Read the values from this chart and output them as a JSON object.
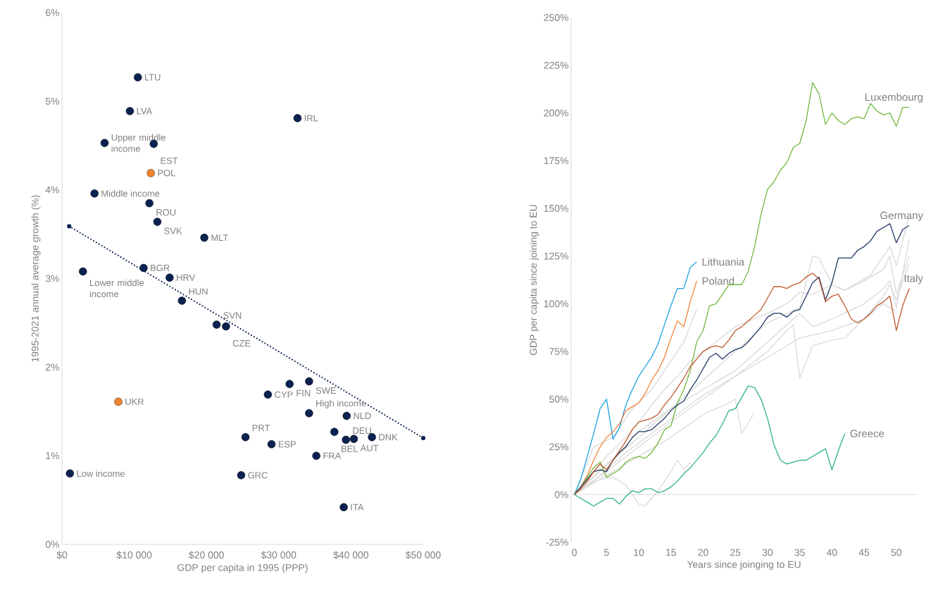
{
  "chart_data": [
    {
      "type": "scatter",
      "xlabel": "GDP per capita in 1995 (PPP)",
      "ylabel": "1995-2021 annual average growth (%)",
      "xlim": [
        0,
        50000
      ],
      "ylim": [
        0,
        6
      ],
      "xticks": [
        {
          "value": 0,
          "label": "$0"
        },
        {
          "value": 10000,
          "label": "$10 000"
        },
        {
          "value": 20000,
          "label": "$20 000"
        },
        {
          "value": 30000,
          "label": "$30 000"
        },
        {
          "value": 40000,
          "label": "$40 000"
        },
        {
          "value": 50000,
          "label": "$50 000"
        }
      ],
      "yticks": [
        {
          "value": 0,
          "label": "0%"
        },
        {
          "value": 1,
          "label": "1%"
        },
        {
          "value": 2,
          "label": "2%"
        },
        {
          "value": 3,
          "label": "3%"
        },
        {
          "value": 4,
          "label": "4%"
        },
        {
          "value": 5,
          "label": "5%"
        },
        {
          "value": 6,
          "label": "6%"
        }
      ],
      "marker": "circle",
      "series": [
        {
          "color": "#0b2150",
          "x": [
            10500,
            9400,
            32600,
            5900,
            12700,
            4500,
            12100,
            13200,
            19700,
            2900,
            11300,
            14900,
            16600,
            21400,
            22700,
            34200,
            31500,
            28500,
            34200,
            39400,
            37700,
            25400,
            42900,
            40400,
            39300,
            29000,
            35200,
            1100,
            24800,
            39000
          ],
          "values": [
            5.27,
            4.89,
            4.81,
            4.53,
            4.52,
            3.96,
            3.85,
            3.64,
            3.46,
            3.08,
            3.12,
            3.01,
            2.75,
            2.48,
            2.46,
            1.84,
            1.81,
            1.69,
            1.48,
            1.45,
            1.27,
            1.21,
            1.21,
            1.19,
            1.18,
            1.13,
            1.0,
            0.8,
            0.78,
            0.42
          ]
        },
        {
          "color": "#f0832e",
          "x": [
            12300,
            7800
          ],
          "values": [
            4.19,
            1.61
          ]
        },
        {
          "type": "line",
          "color": "#0b2150",
          "line_style": "dotted",
          "x": [
            1000,
            50000
          ],
          "values": [
            3.59,
            1.2
          ]
        }
      ],
      "annotations": [
        {
          "text": "LTU",
          "x": 10500,
          "y": 5.27
        },
        {
          "text": "LVA",
          "x": 9400,
          "y": 4.89
        },
        {
          "text": "IRL",
          "x": 32600,
          "y": 4.81
        },
        {
          "text": "Upper middle income",
          "x": 5900,
          "y": 4.53
        },
        {
          "text": "EST",
          "x": 12700,
          "y": 4.52
        },
        {
          "text": "POL",
          "x": 12300,
          "y": 4.19
        },
        {
          "text": "Middle income",
          "x": 4500,
          "y": 3.96
        },
        {
          "text": "ROU",
          "x": 12100,
          "y": 3.85
        },
        {
          "text": "SVK",
          "x": 13200,
          "y": 3.64
        },
        {
          "text": "MLT",
          "x": 19700,
          "y": 3.46
        },
        {
          "text": "Lower middle income",
          "x": 2900,
          "y": 3.08
        },
        {
          "text": "BGR",
          "x": 11300,
          "y": 3.12
        },
        {
          "text": "HRV",
          "x": 14900,
          "y": 3.01
        },
        {
          "text": "HUN",
          "x": 16600,
          "y": 2.75
        },
        {
          "text": "SVN",
          "x": 21400,
          "y": 2.48
        },
        {
          "text": "CZE",
          "x": 22700,
          "y": 2.46
        },
        {
          "text": "SWE",
          "x": 34200,
          "y": 1.84
        },
        {
          "text": "FIN",
          "x": 31500,
          "y": 1.81
        },
        {
          "text": "CYP",
          "x": 28500,
          "y": 1.69
        },
        {
          "text": "UKR",
          "x": 7800,
          "y": 1.61
        },
        {
          "text": "High income",
          "x": 34200,
          "y": 1.48
        },
        {
          "text": "NLD",
          "x": 39400,
          "y": 1.45
        },
        {
          "text": "BEL",
          "x": 37700,
          "y": 1.27
        },
        {
          "text": "PRT",
          "x": 25400,
          "y": 1.21
        },
        {
          "text": "DNK",
          "x": 42900,
          "y": 1.21
        },
        {
          "text": "AUT",
          "x": 40400,
          "y": 1.19
        },
        {
          "text": "DEU",
          "x": 39300,
          "y": 1.18
        },
        {
          "text": "ESP",
          "x": 29000,
          "y": 1.13
        },
        {
          "text": "FRA",
          "x": 35200,
          "y": 1.0
        },
        {
          "text": "Low income",
          "x": 1100,
          "y": 0.8
        },
        {
          "text": "GRC",
          "x": 24800,
          "y": 0.78
        },
        {
          "text": "ITA",
          "x": 39000,
          "y": 0.42
        }
      ]
    },
    {
      "type": "line",
      "xlabel": "Years since joinging to EU",
      "ylabel": "GDP per capita since joining to EU",
      "xlim": [
        -0.5,
        53.2
      ],
      "ylim": [
        -25,
        250
      ],
      "xticks": [
        0,
        5,
        10,
        15,
        20,
        25,
        30,
        35,
        40,
        45,
        50
      ],
      "yticks": [
        {
          "value": -25,
          "label": "-25%"
        },
        {
          "value": 0,
          "label": "0%"
        },
        {
          "value": 25,
          "label": "25%"
        },
        {
          "value": 50,
          "label": "50%"
        },
        {
          "value": 75,
          "label": "75%"
        },
        {
          "value": 100,
          "label": "100%"
        },
        {
          "value": 125,
          "label": "125%"
        },
        {
          "value": 150,
          "label": "150%"
        },
        {
          "value": 175,
          "label": "175%"
        },
        {
          "value": 200,
          "label": "200%"
        },
        {
          "value": 225,
          "label": "225%"
        },
        {
          "value": 250,
          "label": "250%"
        }
      ],
      "marker": "none",
      "series": [
        {
          "color": "#d9d9d9",
          "x": [
            0,
            5,
            10,
            15,
            20,
            25,
            30,
            35,
            37,
            38,
            40,
            42,
            46,
            49,
            50,
            52
          ],
          "values": [
            0,
            15,
            33,
            45,
            60,
            75,
            90,
            98,
            125,
            124,
            110,
            107,
            115,
            130,
            120,
            146
          ]
        },
        {
          "color": "#d9d9d9",
          "x": [
            0,
            5,
            10,
            15,
            20,
            25,
            30,
            35,
            37,
            40,
            45,
            48,
            49,
            50,
            52
          ],
          "values": [
            0,
            16,
            30,
            45,
            55,
            65,
            80,
            95,
            88,
            92,
            100,
            108,
            112,
            98,
            134
          ]
        },
        {
          "color": "#d9d9d9",
          "x": [
            0,
            4,
            8,
            12,
            16,
            20,
            25,
            30,
            35,
            40,
            45,
            48,
            49,
            50,
            52
          ],
          "values": [
            0,
            10,
            22,
            32,
            42,
            52,
            62,
            72,
            82,
            86,
            92,
            104,
            110,
            102,
            121
          ]
        },
        {
          "color": "#d9d9d9",
          "x": [
            0,
            5,
            10,
            15,
            20,
            25,
            30,
            33,
            34,
            35,
            37,
            40,
            42,
            45,
            48,
            50
          ],
          "values": [
            0,
            12,
            25,
            38,
            50,
            62,
            75,
            86,
            89,
            61,
            78,
            81,
            82,
            92,
            100,
            96
          ]
        },
        {
          "color": "#d9d9d9",
          "x": [
            0,
            5,
            10,
            15,
            20,
            24,
            25,
            26,
            28
          ],
          "values": [
            0,
            10,
            20,
            30,
            42,
            48,
            50,
            32,
            43
          ]
        },
        {
          "color": "#d9d9d9",
          "x": [
            0,
            3,
            6,
            9,
            12,
            15,
            17,
            19
          ],
          "values": [
            0,
            25,
            30,
            45,
            55,
            70,
            80,
            97
          ]
        },
        {
          "color": "#d9d9d9",
          "x": [
            0,
            2,
            4,
            6,
            8,
            10,
            11,
            13,
            15,
            16,
            17,
            18
          ],
          "values": [
            0,
            5,
            8,
            9,
            5,
            -5,
            -6,
            2,
            12,
            18,
            13,
            17
          ]
        },
        {
          "color": "#d9d9d9",
          "x": [
            0,
            5,
            8,
            10,
            12,
            14,
            16,
            18,
            20,
            22,
            25,
            30,
            33,
            35,
            37,
            40,
            42,
            45,
            48,
            49,
            50,
            52
          ],
          "values": [
            0,
            20,
            30,
            38,
            47,
            55,
            62,
            70,
            75,
            80,
            88,
            95,
            100,
            106,
            105,
            110,
            107,
            112,
            118,
            125,
            105,
            125
          ]
        },
        {
          "name": "Lithuania",
          "color": "#1ba1e2",
          "x": [
            0,
            1,
            2,
            3,
            4,
            5,
            6,
            7,
            8,
            9,
            10,
            11,
            12,
            13,
            14,
            15,
            16,
            17,
            18,
            19
          ],
          "values": [
            0,
            8,
            20,
            32,
            45,
            50,
            29,
            35,
            47,
            55,
            62,
            67,
            72,
            79,
            89,
            99,
            108,
            108,
            119,
            122
          ]
        },
        {
          "name": "Poland",
          "color": "#f4823c",
          "x": [
            0,
            1,
            2,
            3,
            4,
            5,
            6,
            7,
            8,
            9,
            10,
            11,
            12,
            13,
            14,
            15,
            16,
            17,
            18,
            19
          ],
          "values": [
            0,
            4,
            10,
            18,
            25,
            30,
            33,
            37,
            44,
            46,
            48,
            53,
            60,
            65,
            72,
            82,
            91,
            88,
            101,
            112
          ]
        },
        {
          "name": "Luxembourg",
          "color": "#70b83f",
          "x": [
            0,
            1,
            2,
            3,
            4,
            5,
            6,
            7,
            8,
            9,
            10,
            11,
            12,
            13,
            14,
            15,
            16,
            17,
            18,
            19,
            20,
            21,
            22,
            23,
            24,
            25,
            26,
            27,
            28,
            29,
            30,
            31,
            32,
            33,
            34,
            35,
            36,
            37,
            38,
            39,
            40,
            41,
            42,
            43,
            44,
            45,
            46,
            47,
            48,
            49,
            50,
            51,
            52
          ],
          "values": [
            0,
            4,
            9,
            14,
            17,
            9,
            11,
            13,
            17,
            19,
            20,
            19,
            22,
            27,
            34,
            36,
            48,
            55,
            65,
            80,
            86,
            99,
            100,
            105,
            110,
            110,
            110,
            117,
            130,
            147,
            160,
            164,
            170,
            174,
            182,
            184,
            196,
            216,
            210,
            194,
            200,
            196,
            194,
            197,
            198,
            197,
            205,
            201,
            199,
            200,
            193,
            203,
            203
          ]
        },
        {
          "name": "Germany",
          "color": "#1f3864",
          "x": [
            0,
            1,
            2,
            3,
            4,
            5,
            6,
            7,
            8,
            9,
            10,
            11,
            12,
            13,
            14,
            15,
            16,
            17,
            18,
            19,
            20,
            21,
            22,
            23,
            24,
            25,
            26,
            27,
            28,
            29,
            30,
            31,
            32,
            33,
            34,
            35,
            36,
            37,
            38,
            39,
            40,
            41,
            42,
            43,
            44,
            45,
            46,
            47,
            48,
            49,
            50,
            51,
            52
          ],
          "values": [
            0,
            4,
            8,
            12,
            13,
            12,
            18,
            22,
            25,
            30,
            33,
            33,
            34,
            37,
            40,
            44,
            47,
            49,
            55,
            60,
            66,
            72,
            74,
            71,
            74,
            76,
            77,
            80,
            84,
            88,
            93,
            95,
            95,
            93,
            96,
            97,
            104,
            111,
            114,
            102,
            111,
            124,
            124,
            124,
            128,
            130,
            133,
            138,
            140,
            142,
            132,
            139,
            141
          ]
        },
        {
          "name": "Italy",
          "color": "#c0582b",
          "x": [
            0,
            1,
            2,
            3,
            4,
            5,
            6,
            7,
            8,
            9,
            10,
            11,
            12,
            13,
            14,
            15,
            16,
            17,
            18,
            19,
            20,
            21,
            22,
            23,
            24,
            25,
            26,
            27,
            28,
            29,
            30,
            31,
            32,
            33,
            34,
            35,
            36,
            37,
            38,
            39,
            40,
            41,
            42,
            43,
            44,
            45,
            46,
            47,
            48,
            49,
            50,
            51,
            52
          ],
          "values": [
            0,
            3,
            7,
            12,
            16,
            13,
            18,
            23,
            28,
            34,
            38,
            39,
            40,
            42,
            47,
            51,
            56,
            61,
            67,
            71,
            75,
            77,
            78,
            77,
            81,
            86,
            88,
            91,
            94,
            97,
            103,
            109,
            109,
            108,
            110,
            111,
            114,
            116,
            113,
            101,
            104,
            105,
            99,
            92,
            90,
            92,
            95,
            99,
            101,
            104,
            86,
            99,
            108
          ]
        },
        {
          "name": "Greece",
          "color": "#2eb38a",
          "x": [
            0,
            1,
            2,
            3,
            4,
            5,
            6,
            7,
            8,
            9,
            10,
            11,
            12,
            13,
            14,
            15,
            16,
            17,
            18,
            19,
            20,
            21,
            22,
            23,
            24,
            25,
            26,
            27,
            28,
            29,
            30,
            31,
            32,
            33,
            34,
            35,
            36,
            37,
            38,
            39,
            40,
            41,
            42
          ],
          "values": [
            0,
            -2,
            -4,
            -6,
            -4,
            -2,
            -2,
            -5,
            -1,
            2,
            1,
            3,
            3,
            1,
            2,
            4,
            7,
            11,
            14,
            18,
            22,
            27,
            31,
            37,
            44,
            45,
            51,
            57,
            56,
            50,
            40,
            26,
            18,
            16,
            17,
            18,
            18,
            20,
            22,
            24,
            13,
            23,
            32
          ]
        }
      ]
    }
  ]
}
